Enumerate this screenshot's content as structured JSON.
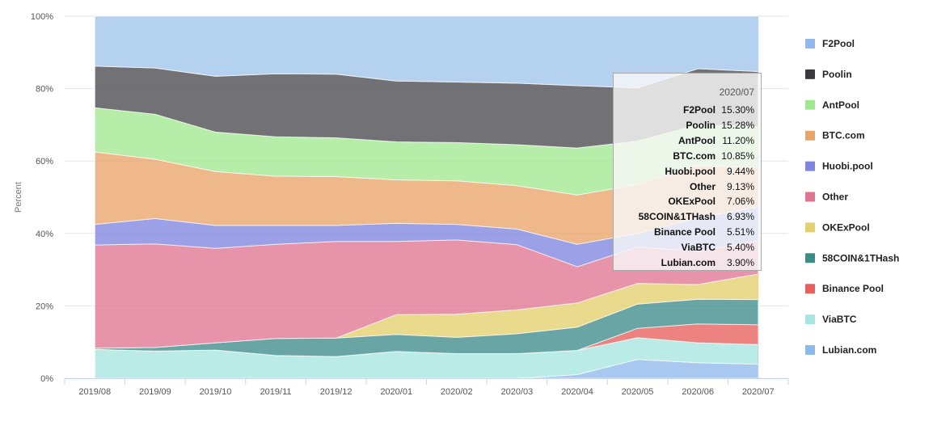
{
  "chart_data": {
    "type": "area",
    "stacked": "percent",
    "title": "",
    "ylabel": "Percent",
    "xlabel": "",
    "ylim": [
      0,
      100
    ],
    "y_ticks": [
      "0%",
      "20%",
      "40%",
      "60%",
      "80%",
      "100%"
    ],
    "categories": [
      "2019/08",
      "2019/09",
      "2019/10",
      "2019/11",
      "2019/12",
      "2020/01",
      "2020/02",
      "2020/03",
      "2020/04",
      "2020/05",
      "2020/06",
      "2020/07"
    ],
    "legend_position": "right",
    "series": [
      {
        "name": "Lubian.com",
        "color": "#8fb9ea",
        "values": [
          0,
          0,
          0,
          0,
          0,
          0,
          0,
          0,
          1,
          5.2,
          4.3,
          3.9
        ]
      },
      {
        "name": "ViaBTC",
        "color": "#a6e6e0",
        "values": [
          8,
          7.5,
          7.8,
          6.3,
          6,
          7.4,
          6.8,
          6.8,
          6.7,
          6,
          5.5,
          5.4
        ]
      },
      {
        "name": "Binance Pool",
        "color": "#e8605d",
        "values": [
          0,
          0,
          0,
          0,
          0,
          0,
          0,
          0,
          0,
          2.6,
          5.2,
          5.51
        ]
      },
      {
        "name": "58COIN&1THash",
        "color": "#3d8c8a",
        "values": [
          0.3,
          1,
          2,
          4.7,
          5.1,
          4.7,
          4.5,
          5.5,
          6.4,
          6.7,
          6.8,
          6.93
        ]
      },
      {
        "name": "OKExPool",
        "color": "#e3d06e",
        "values": [
          0,
          0,
          0,
          0,
          0,
          5.5,
          6.4,
          6.6,
          6.7,
          5.7,
          4.1,
          7.06
        ]
      },
      {
        "name": "Other",
        "color": "#e07591",
        "values": [
          28.5,
          28.6,
          26.1,
          26,
          26.7,
          20.2,
          20.5,
          18,
          10,
          10,
          9.2,
          9.13
        ]
      },
      {
        "name": "Huobi.pool",
        "color": "#8086e0",
        "values": [
          5.7,
          7,
          6.3,
          5.2,
          4.4,
          5,
          4.3,
          4.3,
          6.2,
          3.8,
          9.2,
          9.44
        ]
      },
      {
        "name": "BTC.com",
        "color": "#e9a46a",
        "values": [
          20,
          16.4,
          14.9,
          13.6,
          13.5,
          12,
          12,
          12,
          13.6,
          13.5,
          14.5,
          10.85
        ]
      },
      {
        "name": "AntPool",
        "color": "#a2e88f",
        "values": [
          12.2,
          12.4,
          10.9,
          10.9,
          10.7,
          10.5,
          10.6,
          11.3,
          13,
          12,
          11.2,
          11.2
        ]
      },
      {
        "name": "Poolin",
        "color": "#4a4a50",
        "values": [
          11.5,
          12.8,
          15.4,
          17.4,
          17.6,
          16.8,
          16.7,
          17,
          17.2,
          14.7,
          15.5,
          15.28
        ]
      },
      {
        "name": "F2Pool",
        "color": "#9fc4ec",
        "values": [
          13.8,
          14.3,
          16.6,
          15.9,
          16,
          17.9,
          18.2,
          18.5,
          19.2,
          19.8,
          14.5,
          15.3
        ]
      }
    ],
    "legend": [
      "F2Pool",
      "Poolin",
      "AntPool",
      "BTC.com",
      "Huobi.pool",
      "Other",
      "OKExPool",
      "58COIN&1THash",
      "Binance Pool",
      "ViaBTC",
      "Lubian.com"
    ],
    "legend_colors": {
      "F2Pool": "#8fb9ea",
      "Poolin": "#3a3a3e",
      "AntPool": "#a2e88f",
      "BTC.com": "#e9a46a",
      "Huobi.pool": "#8086e0",
      "Other": "#e07591",
      "OKExPool": "#e3d06e",
      "58COIN&1THash": "#3d8c8a",
      "Binance Pool": "#e8605d",
      "ViaBTC": "#a6e6e0",
      "Lubian.com": "#8fb9ea"
    },
    "tooltip": {
      "date": "2020/07",
      "rows": [
        {
          "name": "F2Pool",
          "value": "15.30%"
        },
        {
          "name": "Poolin",
          "value": "15.28%"
        },
        {
          "name": "AntPool",
          "value": "11.20%"
        },
        {
          "name": "BTC.com",
          "value": "10.85%"
        },
        {
          "name": "Huobi.pool",
          "value": "9.44%"
        },
        {
          "name": "Other",
          "value": "9.13%"
        },
        {
          "name": "OKExPool",
          "value": "7.06%"
        },
        {
          "name": "58COIN&1THash",
          "value": "6.93%"
        },
        {
          "name": "Binance Pool",
          "value": "5.51%"
        },
        {
          "name": "ViaBTC",
          "value": "5.40%"
        },
        {
          "name": "Lubian.com",
          "value": "3.90%"
        }
      ]
    }
  }
}
